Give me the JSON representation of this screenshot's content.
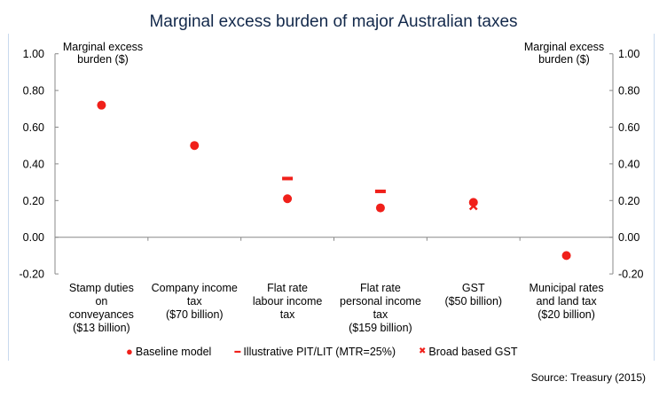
{
  "chart_data": {
    "type": "scatter",
    "title": "Marginal excess burden of major Australian taxes",
    "ylabel_left": "Marginal excess burden ($)",
    "ylabel_right": "Marginal excess burden ($)",
    "ylim": [
      -0.2,
      1.0
    ],
    "yticks": [
      "1.00",
      "0.80",
      "0.60",
      "0.40",
      "0.20",
      "0.00",
      "-0.20"
    ],
    "ytick_values": [
      1.0,
      0.8,
      0.6,
      0.4,
      0.2,
      0.0,
      -0.2
    ],
    "categories": [
      "Stamp duties\non\nconveyances\n($13 billion)",
      "Company income\ntax\n($70 billion)",
      "Flat rate\nlabour income\ntax",
      "Flat rate\npersonal income\ntax\n($159 billion)",
      "GST\n($50 billion)",
      "Municipal rates\nand land tax\n($20 billion)"
    ],
    "series": [
      {
        "name": "Baseline model",
        "marker": "circle",
        "color": "#f0201a",
        "values": [
          0.72,
          0.5,
          0.21,
          0.16,
          0.19,
          -0.1
        ]
      },
      {
        "name": "Illustrative PIT/LIT (MTR=25%)",
        "marker": "dash",
        "color": "#f0201a",
        "values": [
          null,
          null,
          0.32,
          0.25,
          null,
          null
        ]
      },
      {
        "name": "Broad based GST",
        "marker": "x",
        "color": "#f0201a",
        "values": [
          null,
          null,
          null,
          null,
          0.17,
          null
        ]
      }
    ],
    "grid": false,
    "legend": "bottom"
  },
  "source": "Source: Treasury (2015)"
}
